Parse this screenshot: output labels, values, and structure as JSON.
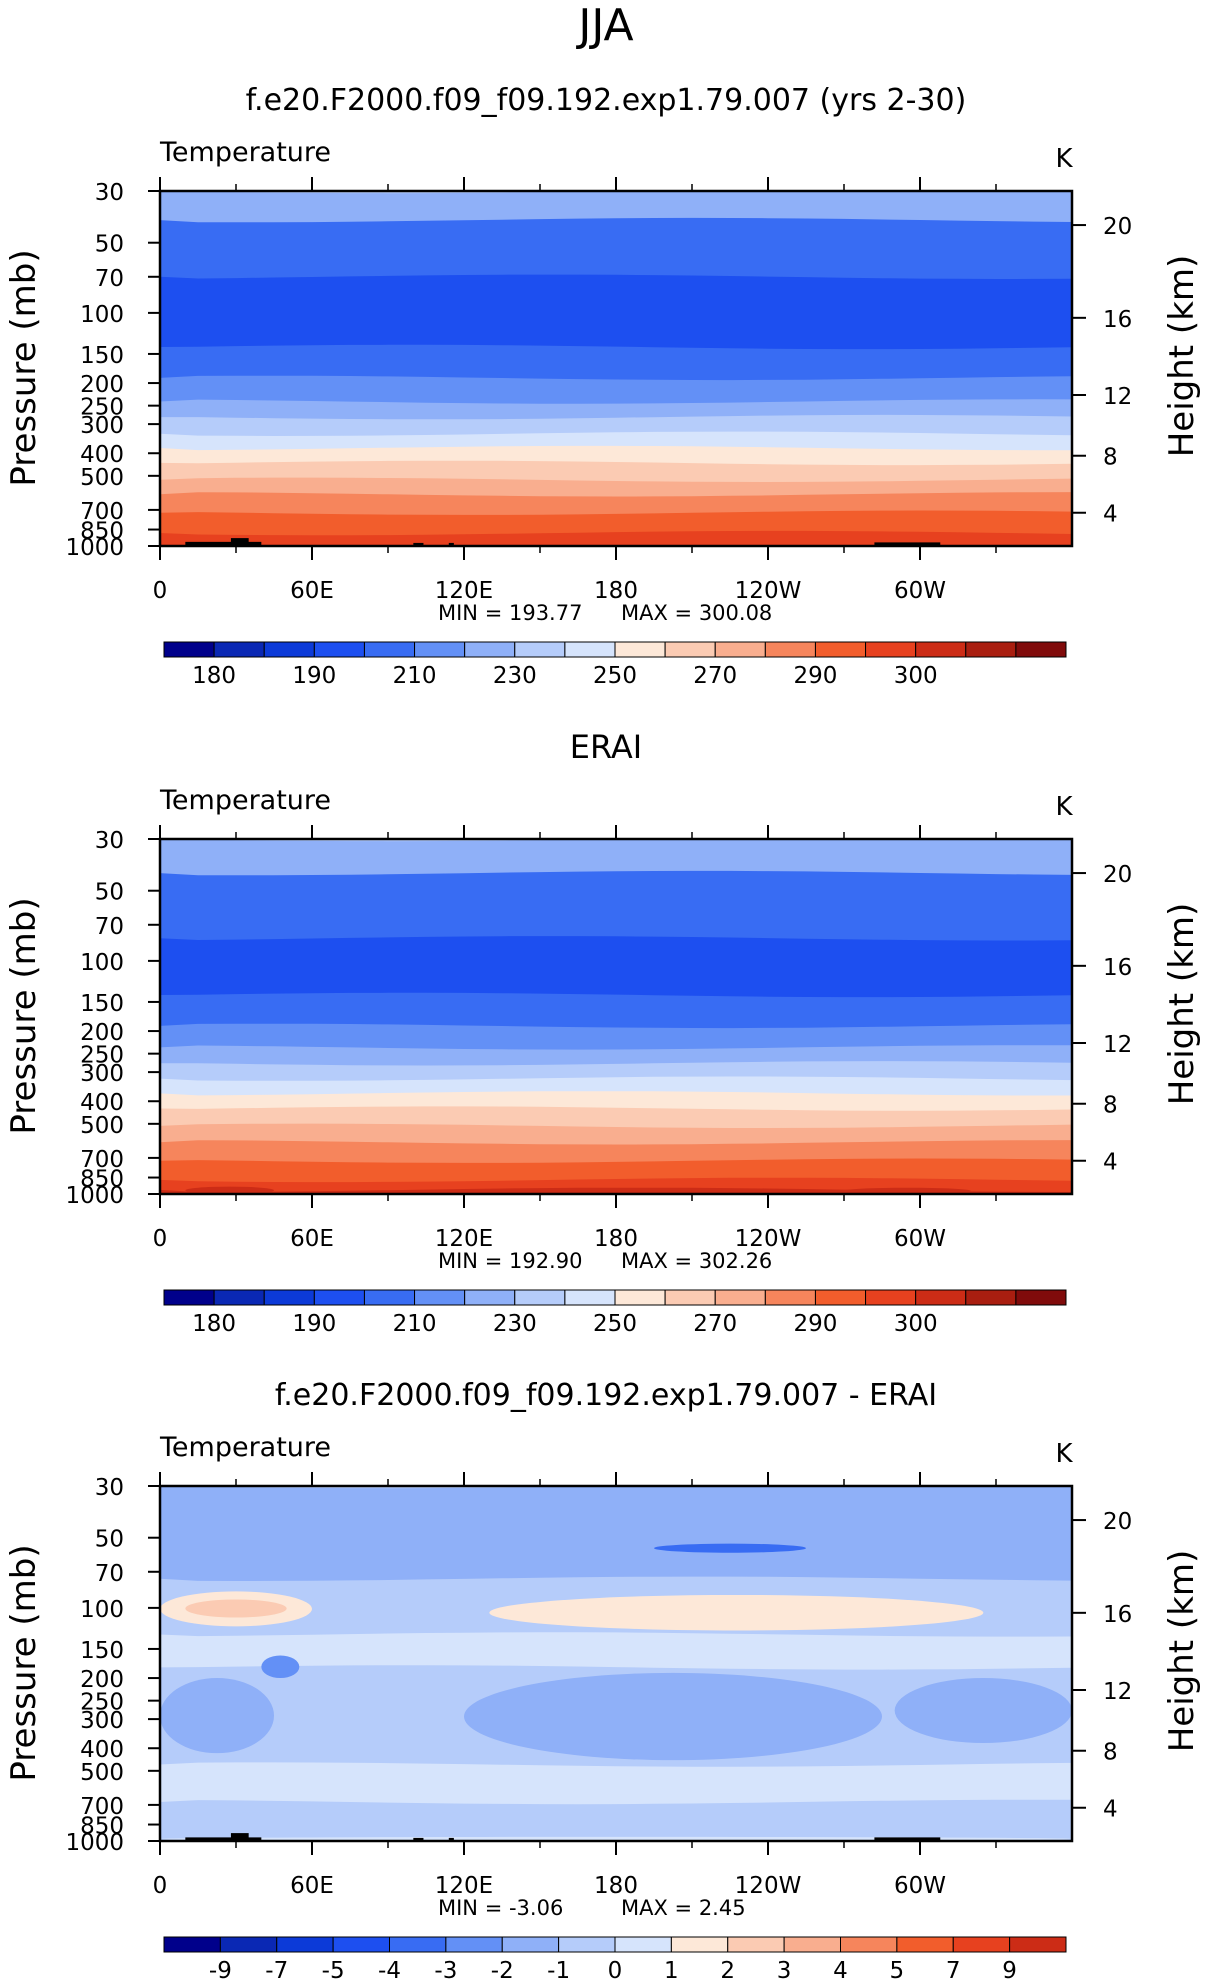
{
  "page": {
    "title": "JJA"
  },
  "chart_data": [
    {
      "type": "heatmap",
      "title": "f.e20.F2000.f09_f09.192.exp1.79.007 (yrs 2-30)",
      "field_label": "Temperature",
      "units": "K",
      "ylabel": "Pressure (mb)",
      "ylabel_right": "Height (km)",
      "x_ticks": [
        "0",
        "60E",
        "120E",
        "180",
        "120W",
        "60W"
      ],
      "y_ticks": [
        "30",
        "50",
        "70",
        "100",
        "150",
        "200",
        "250",
        "300",
        "400",
        "500",
        "700",
        "850",
        "1000"
      ],
      "y_right_ticks": [
        "20",
        "16",
        "12",
        "8",
        "4"
      ],
      "min_label": "MIN = 193.77",
      "max_label": "MAX = 300.08",
      "colorbar_labels": [
        "180",
        "190",
        "210",
        "230",
        "250",
        "270",
        "290",
        "300"
      ],
      "colorbar_colors": [
        "#00008b",
        "#0a28b4",
        "#0c3ad8",
        "#1d4ff0",
        "#386cf3",
        "#6390f6",
        "#8fb0f8",
        "#b5ccfa",
        "#d6e4fc",
        "#fde8d8",
        "#fbcbb3",
        "#f9ae8f",
        "#f6855c",
        "#f25d2c",
        "#e7411f",
        "#cc2c16",
        "#a91e10",
        "#800b0b"
      ],
      "bands": [
        {
          "top": 30,
          "bottom": 40,
          "color": "#8fb0f8"
        },
        {
          "top": 40,
          "bottom": 70,
          "color": "#386cf3"
        },
        {
          "top": 70,
          "bottom": 140,
          "color": "#1d4ff0"
        },
        {
          "top": 140,
          "bottom": 190,
          "color": "#386cf3"
        },
        {
          "top": 190,
          "bottom": 240,
          "color": "#6390f6"
        },
        {
          "top": 240,
          "bottom": 280,
          "color": "#8fb0f8"
        },
        {
          "top": 280,
          "bottom": 330,
          "color": "#b5ccfa"
        },
        {
          "top": 330,
          "bottom": 380,
          "color": "#d6e4fc"
        },
        {
          "top": 380,
          "bottom": 440,
          "color": "#fde8d8"
        },
        {
          "top": 440,
          "bottom": 520,
          "color": "#fbcbb3"
        },
        {
          "top": 520,
          "bottom": 600,
          "color": "#f9ae8f"
        },
        {
          "top": 600,
          "bottom": 720,
          "color": "#f6855c"
        },
        {
          "top": 720,
          "bottom": 880,
          "color": "#f25d2c"
        },
        {
          "top": 880,
          "bottom": 1000,
          "color": "#e7411f"
        }
      ],
      "features": [
        {
          "lon1": 10,
          "lon2": 40,
          "p1": 960,
          "p2": 1000,
          "color": "#000000"
        },
        {
          "lon1": 28,
          "lon2": 35,
          "p1": 925,
          "p2": 1000,
          "color": "#000000"
        },
        {
          "lon1": 100,
          "lon2": 104,
          "p1": 970,
          "p2": 1000,
          "color": "#000000"
        },
        {
          "lon1": 114,
          "lon2": 116,
          "p1": 970,
          "p2": 1000,
          "color": "#000000"
        },
        {
          "lon1": 282,
          "lon2": 308,
          "p1": 965,
          "p2": 1000,
          "color": "#000000"
        }
      ]
    },
    {
      "type": "heatmap",
      "title": "ERAI",
      "field_label": "Temperature",
      "units": "K",
      "ylabel": "Pressure (mb)",
      "ylabel_right": "Height (km)",
      "x_ticks": [
        "0",
        "60E",
        "120E",
        "180",
        "120W",
        "60W"
      ],
      "y_ticks": [
        "30",
        "50",
        "70",
        "100",
        "150",
        "200",
        "250",
        "300",
        "400",
        "500",
        "700",
        "850",
        "1000"
      ],
      "y_right_ticks": [
        "20",
        "16",
        "12",
        "8",
        "4"
      ],
      "min_label": "MIN = 192.90",
      "max_label": "MAX = 302.26",
      "colorbar_labels": [
        "180",
        "190",
        "210",
        "230",
        "250",
        "270",
        "290",
        "300"
      ],
      "colorbar_colors": [
        "#00008b",
        "#0a28b4",
        "#0c3ad8",
        "#1d4ff0",
        "#386cf3",
        "#6390f6",
        "#8fb0f8",
        "#b5ccfa",
        "#d6e4fc",
        "#fde8d8",
        "#fbcbb3",
        "#f9ae8f",
        "#f6855c",
        "#f25d2c",
        "#e7411f",
        "#cc2c16",
        "#a91e10",
        "#800b0b"
      ],
      "bands": [
        {
          "top": 30,
          "bottom": 42,
          "color": "#8fb0f8"
        },
        {
          "top": 42,
          "bottom": 80,
          "color": "#386cf3"
        },
        {
          "top": 80,
          "bottom": 140,
          "color": "#1d4ff0"
        },
        {
          "top": 140,
          "bottom": 190,
          "color": "#386cf3"
        },
        {
          "top": 190,
          "bottom": 235,
          "color": "#6390f6"
        },
        {
          "top": 235,
          "bottom": 275,
          "color": "#8fb0f8"
        },
        {
          "top": 275,
          "bottom": 320,
          "color": "#b5ccfa"
        },
        {
          "top": 320,
          "bottom": 370,
          "color": "#d6e4fc"
        },
        {
          "top": 370,
          "bottom": 430,
          "color": "#fde8d8"
        },
        {
          "top": 430,
          "bottom": 510,
          "color": "#fbcbb3"
        },
        {
          "top": 510,
          "bottom": 600,
          "color": "#f9ae8f"
        },
        {
          "top": 600,
          "bottom": 720,
          "color": "#f6855c"
        },
        {
          "top": 720,
          "bottom": 870,
          "color": "#f25d2c"
        },
        {
          "top": 870,
          "bottom": 960,
          "color": "#e7411f"
        },
        {
          "top": 960,
          "bottom": 1000,
          "color": "#cc2c16"
        }
      ],
      "features": [
        {
          "lon1": 10,
          "lon2": 45,
          "p1": 930,
          "p2": 1000,
          "color": "#cc2c16"
        },
        {
          "lon1": 270,
          "lon2": 320,
          "p1": 940,
          "p2": 1000,
          "color": "#cc2c16"
        }
      ]
    },
    {
      "type": "heatmap",
      "title": "f.e20.F2000.f09_f09.192.exp1.79.007 - ERAI",
      "field_label": "Temperature",
      "units": "K",
      "ylabel": "Pressure (mb)",
      "ylabel_right": "Height (km)",
      "x_ticks": [
        "0",
        "60E",
        "120E",
        "180",
        "120W",
        "60W"
      ],
      "y_ticks": [
        "30",
        "50",
        "70",
        "100",
        "150",
        "200",
        "250",
        "300",
        "400",
        "500",
        "700",
        "850",
        "1000"
      ],
      "y_right_ticks": [
        "20",
        "16",
        "12",
        "8",
        "4"
      ],
      "min_label": "MIN = -3.06",
      "max_label": "MAX = 2.45",
      "colorbar_labels": [
        "-9",
        "-7",
        "-5",
        "-4",
        "-3",
        "-2",
        "-1",
        "0",
        "1",
        "2",
        "3",
        "4",
        "5",
        "7",
        "9"
      ],
      "colorbar_colors": [
        "#00008b",
        "#0a28b4",
        "#0c3ad8",
        "#1d4ff0",
        "#386cf3",
        "#6390f6",
        "#8fb0f8",
        "#b5ccfa",
        "#d6e4fc",
        "#fde8d8",
        "#fbcbb3",
        "#f9ae8f",
        "#f6855c",
        "#f25d2c",
        "#e7411f",
        "#cc2c16"
      ],
      "bands": [
        {
          "top": 30,
          "bottom": 75,
          "color": "#8fb0f8"
        },
        {
          "top": 75,
          "bottom": 130,
          "color": "#b5ccfa"
        },
        {
          "top": 130,
          "bottom": 180,
          "color": "#d6e4fc"
        },
        {
          "top": 180,
          "bottom": 470,
          "color": "#b5ccfa"
        },
        {
          "top": 470,
          "bottom": 680,
          "color": "#d6e4fc"
        },
        {
          "top": 680,
          "bottom": 1000,
          "color": "#b5ccfa"
        }
      ],
      "features": [
        {
          "lon1": 0,
          "lon2": 60,
          "p1": 85,
          "p2": 120,
          "color": "#fde8d8"
        },
        {
          "lon1": 10,
          "lon2": 50,
          "p1": 92,
          "p2": 110,
          "color": "#fbcbb3"
        },
        {
          "lon1": 130,
          "lon2": 325,
          "p1": 88,
          "p2": 125,
          "color": "#fde8d8"
        },
        {
          "lon1": 195,
          "lon2": 255,
          "p1": 53,
          "p2": 58,
          "color": "#386cf3"
        },
        {
          "lon1": 0,
          "lon2": 45,
          "p1": 200,
          "p2": 420,
          "color": "#8fb0f8"
        },
        {
          "lon1": 40,
          "lon2": 55,
          "p1": 160,
          "p2": 200,
          "color": "#6390f6"
        },
        {
          "lon1": 120,
          "lon2": 285,
          "p1": 190,
          "p2": 450,
          "color": "#8fb0f8"
        },
        {
          "lon1": 290,
          "lon2": 360,
          "p1": 200,
          "p2": 380,
          "color": "#8fb0f8"
        },
        {
          "lon1": 0,
          "lon2": 360,
          "p1": 960,
          "p2": 1000,
          "color": "#d6e4fc"
        },
        {
          "lon1": 10,
          "lon2": 40,
          "p1": 965,
          "p2": 1000,
          "color": "#000000"
        },
        {
          "lon1": 28,
          "lon2": 35,
          "p1": 925,
          "p2": 1000,
          "color": "#000000"
        },
        {
          "lon1": 100,
          "lon2": 104,
          "p1": 970,
          "p2": 1000,
          "color": "#000000"
        },
        {
          "lon1": 114,
          "lon2": 116,
          "p1": 970,
          "p2": 1000,
          "color": "#000000"
        },
        {
          "lon1": 282,
          "lon2": 308,
          "p1": 965,
          "p2": 1000,
          "color": "#000000"
        }
      ]
    }
  ]
}
